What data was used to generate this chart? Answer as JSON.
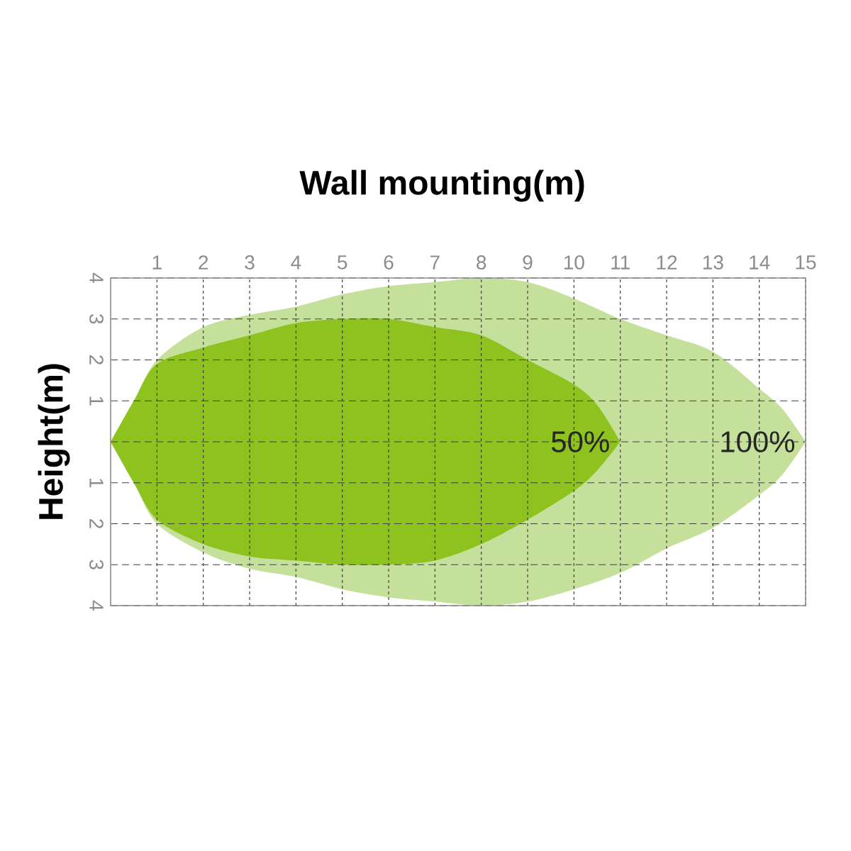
{
  "chart_data": {
    "type": "area",
    "title": "Wall mounting(m)",
    "ylabel": "Height(m)",
    "xlim": [
      0,
      15
    ],
    "xticks": [
      1,
      2,
      3,
      4,
      5,
      6,
      7,
      8,
      9,
      10,
      11,
      12,
      13,
      14,
      15
    ],
    "ylim": [
      -4,
      4
    ],
    "yticks": [
      4,
      3,
      2,
      1,
      {
        "value": 0,
        "label": null
      },
      {
        "value": -1,
        "label": "1"
      },
      {
        "value": -2,
        "label": "2"
      },
      {
        "value": -3,
        "label": "3"
      },
      {
        "value": -4,
        "label": "4"
      }
    ],
    "grid": true,
    "series": [
      {
        "name": "100%",
        "color": "#c5e09b",
        "x": [
          0,
          0.5,
          1,
          2,
          3,
          4,
          5,
          6,
          7,
          8,
          9,
          10,
          11,
          12,
          13,
          14,
          14.5,
          15
        ],
        "values": [
          0,
          1.0,
          2.0,
          2.8,
          3.1,
          3.3,
          3.6,
          3.8,
          3.9,
          4.0,
          3.9,
          3.5,
          3.0,
          2.6,
          2.2,
          1.3,
          0.8,
          0
        ]
      },
      {
        "color": "#c5e09b",
        "x": [
          0,
          0.5,
          1,
          2,
          3,
          4,
          5,
          6,
          7,
          8,
          9,
          10,
          11,
          12,
          13,
          14,
          14.5,
          15
        ],
        "values": [
          0,
          -1.0,
          -2.0,
          -2.7,
          -3.1,
          -3.3,
          -3.6,
          -3.8,
          -3.9,
          -4.0,
          -3.9,
          -3.6,
          -3.2,
          -2.6,
          -2.1,
          -1.3,
          -0.8,
          0
        ]
      },
      {
        "name": "50%",
        "color": "#8dc21f",
        "x": [
          0,
          0.5,
          1,
          2,
          3,
          4,
          5,
          6,
          7,
          8,
          9,
          10,
          10.5,
          11
        ],
        "values": [
          0,
          1.0,
          1.9,
          2.3,
          2.6,
          2.9,
          3.0,
          3.0,
          2.8,
          2.6,
          2.0,
          1.4,
          0.9,
          0
        ]
      },
      {
        "color": "#8dc21f",
        "x": [
          0,
          0.5,
          1,
          2,
          3,
          4,
          5,
          6,
          7,
          8,
          9,
          10,
          10.5,
          11
        ],
        "values": [
          0,
          -1.0,
          -1.9,
          -2.5,
          -2.8,
          -2.9,
          -3.0,
          -3.0,
          -2.9,
          -2.5,
          -1.9,
          -1.2,
          -0.7,
          0
        ]
      }
    ]
  }
}
